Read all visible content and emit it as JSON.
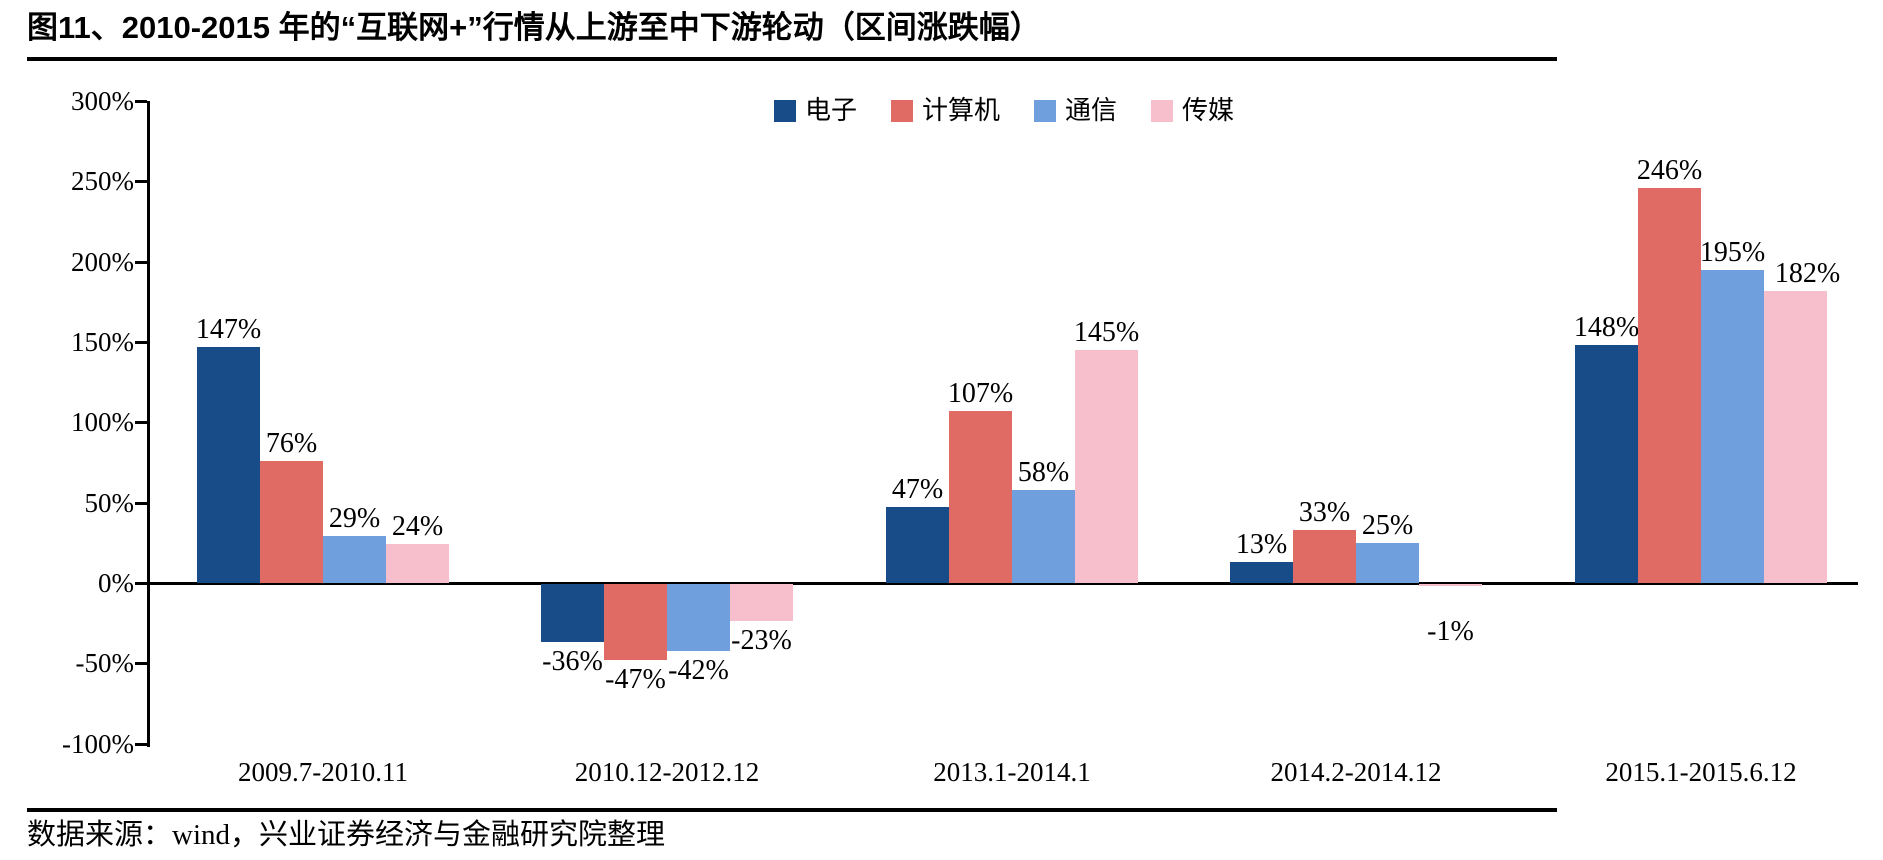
{
  "header": {
    "title": "图11、2010-2015 年的“互联网+”行情从上游至中下游轮动（区间涨跌幅）"
  },
  "footer": {
    "source": "数据来源：wind，兴业证券经济与金融研究院整理"
  },
  "chart_data": {
    "type": "bar",
    "title": "图11、2010-2015 年的“互联网+”行情从上游至中下游轮动（区间涨跌幅）",
    "categories": [
      "2009.7-2010.11",
      "2010.12-2012.12",
      "2013.1-2014.1",
      "2014.2-2014.12",
      "2015.1-2015.6.12"
    ],
    "series": [
      {
        "key": "electronics",
        "name": "电子",
        "color": "#174C88",
        "values": [
          147,
          -36,
          47,
          13,
          148
        ]
      },
      {
        "key": "computer",
        "name": "计算机",
        "color": "#E06B65",
        "values": [
          76,
          -47,
          107,
          33,
          246
        ]
      },
      {
        "key": "telecom",
        "name": "通信",
        "color": "#6F9FDD",
        "values": [
          29,
          -42,
          58,
          25,
          195
        ]
      },
      {
        "key": "media",
        "name": "传媒",
        "color": "#F6BFCB",
        "values": [
          24,
          -23,
          145,
          -1,
          182
        ]
      }
    ],
    "value_label_format": "{v}%",
    "ylabel": "",
    "xlabel": "",
    "ylim": [
      -100,
      300
    ],
    "ytick_step": 50,
    "ytick_labels": [
      "300%",
      "250%",
      "200%",
      "150%",
      "100%",
      "50%",
      "0%",
      "-50%",
      "-100%"
    ],
    "grid": false,
    "legend_position": "top-center",
    "axis_color": "#000000"
  }
}
